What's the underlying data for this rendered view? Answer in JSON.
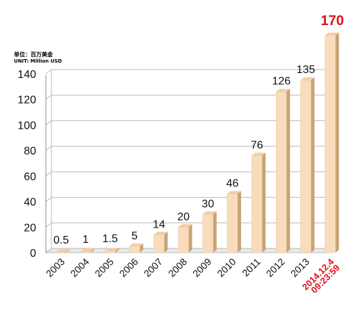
{
  "unit_label_cn": "单位：百万美金",
  "unit_label_en": "UNIT: Million USD",
  "chart_data": {
    "type": "bar",
    "title": "",
    "xlabel": "",
    "ylabel": "",
    "ylim": [
      0,
      140
    ],
    "yticks": [
      0,
      20,
      40,
      60,
      80,
      100,
      120,
      140
    ],
    "grid": true,
    "categories": [
      "2003",
      "2004",
      "2005",
      "2006",
      "2007",
      "2008",
      "2009",
      "2010",
      "2011",
      "2012",
      "2013",
      "2014.12.4\n09:23:59"
    ],
    "values": [
      0.5,
      1,
      1.5,
      5,
      14,
      20,
      30,
      46,
      76,
      126,
      135,
      170
    ],
    "data_labels": [
      "0.5",
      "1",
      "1.5",
      "5",
      "14",
      "20",
      "30",
      "46",
      "76",
      "126",
      "135",
      "170"
    ],
    "highlight_index": 11,
    "colors": {
      "bar_front": "#f8dcbc",
      "bar_side": "#c9a377",
      "bar_top": "#f2cfa3",
      "highlight_text": "#e0101a",
      "grid": "#b8b8b8",
      "text": "#111111"
    }
  }
}
